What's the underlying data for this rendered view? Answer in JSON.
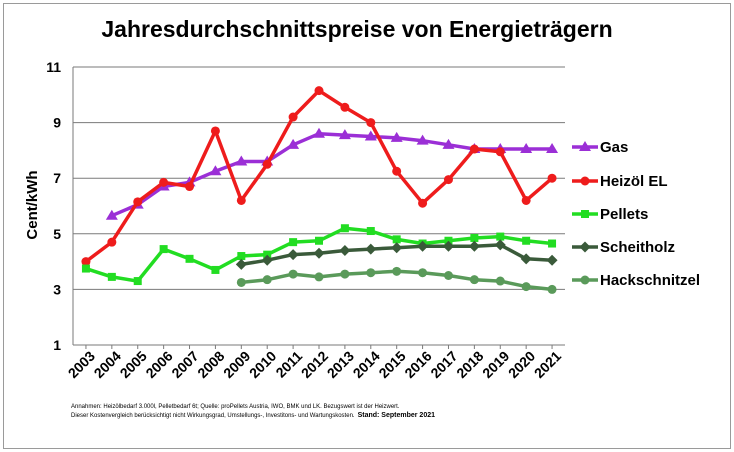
{
  "chart_data": {
    "type": "line",
    "title": "Jahresdurchschnittspreise von Energieträgern",
    "ylabel": "Cent/kWh",
    "xlabel": "",
    "ylim": [
      1,
      11
    ],
    "yticks": [
      1,
      3,
      5,
      7,
      9,
      11
    ],
    "grid": true,
    "legend_position": "right",
    "x": [
      "2003",
      "2004",
      "2005",
      "2006",
      "2007",
      "2008",
      "2009",
      "2010",
      "2011",
      "2012",
      "2013",
      "2014",
      "2015",
      "2016",
      "2017",
      "2018",
      "2019",
      "2020",
      "2021"
    ],
    "series": [
      {
        "name": "Gas",
        "color": "#9b2fd6",
        "marker": "triangle",
        "values": [
          null,
          5.65,
          6.05,
          6.7,
          6.85,
          7.25,
          7.6,
          7.6,
          8.2,
          8.6,
          8.55,
          8.5,
          8.45,
          8.35,
          8.2,
          8.05,
          8.05,
          8.05,
          8.05
        ]
      },
      {
        "name": "Heizöl EL",
        "color": "#ee1c1c",
        "marker": "circle",
        "values": [
          4.0,
          4.7,
          6.15,
          6.85,
          6.7,
          8.7,
          6.2,
          7.5,
          9.2,
          10.15,
          9.55,
          9.0,
          7.25,
          6.1,
          6.95,
          8.05,
          7.95,
          6.2,
          7.0
        ]
      },
      {
        "name": "Pellets",
        "color": "#22dd22",
        "marker": "square",
        "values": [
          3.75,
          3.45,
          3.3,
          4.45,
          4.1,
          3.7,
          4.2,
          4.25,
          4.7,
          4.75,
          5.2,
          5.1,
          4.8,
          4.65,
          4.75,
          4.85,
          4.9,
          4.75,
          4.65
        ]
      },
      {
        "name": "Scheitholz",
        "color": "#3a5a3a",
        "marker": "diamond",
        "values": [
          null,
          null,
          null,
          null,
          null,
          null,
          3.9,
          4.05,
          4.25,
          4.3,
          4.4,
          4.45,
          4.5,
          4.55,
          4.55,
          4.55,
          4.6,
          4.1,
          4.05
        ]
      },
      {
        "name": "Hackschnitzel",
        "color": "#5a9a5a",
        "marker": "circle",
        "values": [
          null,
          null,
          null,
          null,
          null,
          null,
          3.25,
          3.35,
          3.55,
          3.45,
          3.55,
          3.6,
          3.65,
          3.6,
          3.5,
          3.35,
          3.3,
          3.1,
          3.0
        ]
      }
    ]
  },
  "footnote": {
    "line1": "Annahmen: Heizölbedarf 3.000l, Pelletbedarf 6t; Quelle: proPellets Austria, IWO, BMK und LK. Bezugswert ist der Heizwert.",
    "line2": "Dieser Kostenvergleich berücksichtigt nicht Wirkungsgrad, Umstellungs-, Investitons- und  Wartungskosten.",
    "stand": "Stand: September 2021"
  }
}
